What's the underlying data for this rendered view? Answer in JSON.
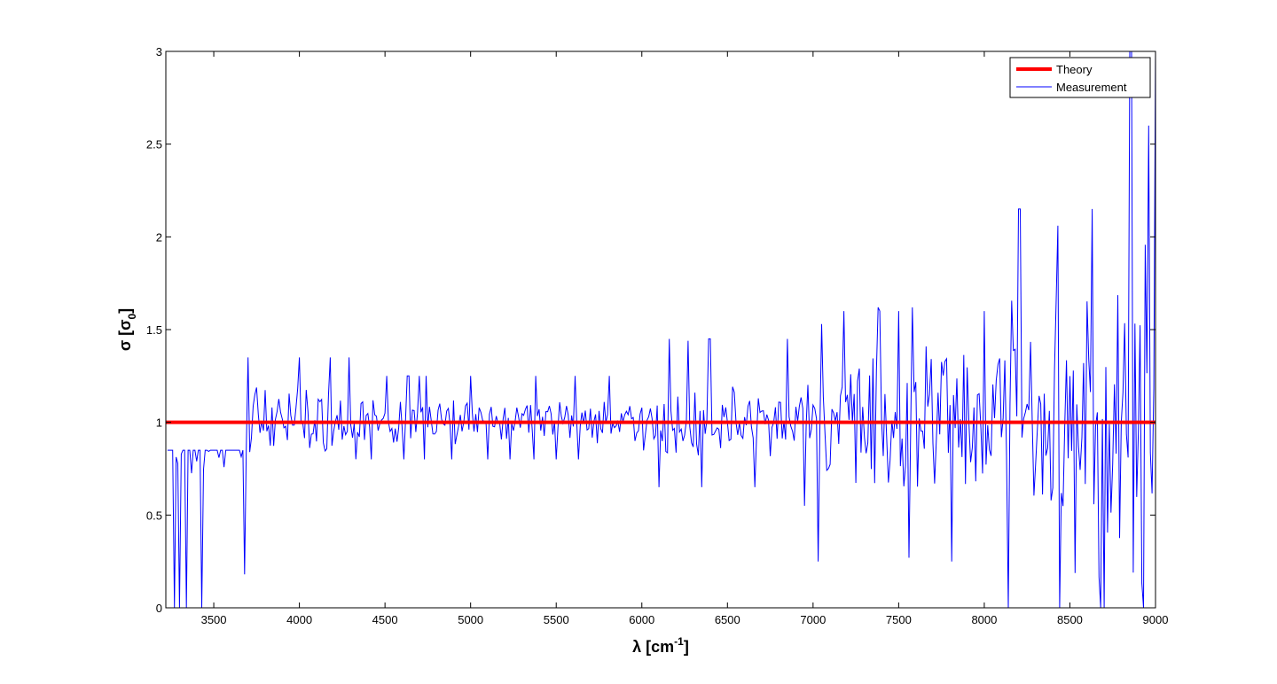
{
  "chart_data": {
    "type": "line",
    "title": "",
    "xlabel": {
      "main": "λ [cm",
      "sup": "-1",
      "tail": "]"
    },
    "ylabel": {
      "main": "σ [σ",
      "sub": "0",
      "tail": "]"
    },
    "xlim": [
      3220,
      9000
    ],
    "ylim": [
      0,
      3
    ],
    "xticks": [
      3500,
      4000,
      4500,
      5000,
      5500,
      6000,
      6500,
      7000,
      7500,
      8000,
      8500,
      9000
    ],
    "xtick_labels": [
      "3500",
      "4000",
      "4500",
      "5000",
      "5500",
      "6000",
      "6500",
      "7000",
      "7500",
      "8000",
      "8500",
      "9000"
    ],
    "yticks": [
      0,
      0.5,
      1,
      1.5,
      2,
      2.5,
      3
    ],
    "ytick_labels": [
      "0",
      "0.5",
      "1",
      "1.5",
      "2",
      "2.5",
      "3"
    ],
    "grid": false,
    "legend": {
      "position": "top-right",
      "entries": [
        "Theory",
        "Measurement"
      ]
    },
    "series": [
      {
        "name": "Theory",
        "color": "#ff0000",
        "x": [
          3220,
          9000
        ],
        "y": [
          1,
          1
        ]
      },
      {
        "name": "Measurement",
        "color": "#0000ff",
        "step": 10,
        "x_start": 3230,
        "x_end": 9000,
        "segments": [
          {
            "x_from": 3230,
            "x_to": 3700,
            "lo": 0.0,
            "hi": 0.85,
            "amp": 0.3
          },
          {
            "x_from": 3700,
            "x_to": 4400,
            "lo": 0.55,
            "hi": 1.35,
            "amp": 0.18
          },
          {
            "x_from": 4400,
            "x_to": 6000,
            "lo": 0.8,
            "hi": 1.25,
            "amp": 0.1
          },
          {
            "x_from": 6000,
            "x_to": 7000,
            "lo": 0.65,
            "hi": 1.45,
            "amp": 0.2
          },
          {
            "x_from": 7000,
            "x_to": 8150,
            "lo": 0.25,
            "hi": 1.6,
            "amp": 0.35
          },
          {
            "x_from": 8150,
            "x_to": 8800,
            "lo": 0.0,
            "hi": 2.15,
            "amp": 0.65
          },
          {
            "x_from": 8800,
            "x_to": 9000,
            "lo": 0.0,
            "hi": 3.0,
            "amp": 0.95
          }
        ],
        "notable_peaks": [
          {
            "x": 3700,
            "y": 1.35
          },
          {
            "x": 6270,
            "y": 1.44
          },
          {
            "x": 7050,
            "y": 1.53
          },
          {
            "x": 7380,
            "y": 1.62
          },
          {
            "x": 7580,
            "y": 1.62
          },
          {
            "x": 8210,
            "y": 2.15
          },
          {
            "x": 8430,
            "y": 2.06
          },
          {
            "x": 8630,
            "y": 2.15
          },
          {
            "x": 8860,
            "y": 3.0
          },
          {
            "x": 8960,
            "y": 2.6
          },
          {
            "x": 9000,
            "y": 3.0
          }
        ],
        "notable_dips": [
          {
            "x": 3300,
            "y": 0.0
          },
          {
            "x": 3680,
            "y": 0.18
          },
          {
            "x": 6950,
            "y": 0.55
          },
          {
            "x": 7560,
            "y": 0.27
          },
          {
            "x": 8140,
            "y": 0.0
          },
          {
            "x": 8440,
            "y": 0.0
          },
          {
            "x": 8700,
            "y": 0.0
          }
        ]
      }
    ]
  }
}
